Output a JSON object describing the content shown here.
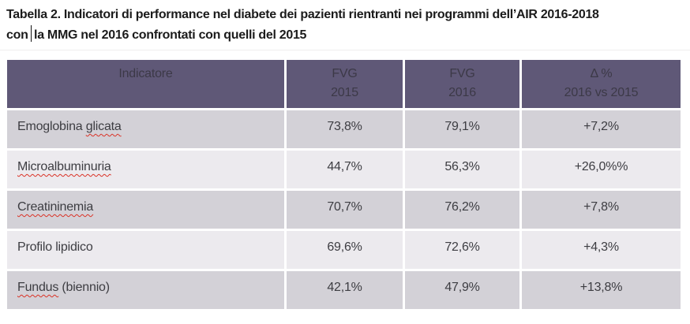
{
  "title": {
    "line1": "Tabella 2. Indicatori di performance nel diabete dei pazienti rientranti nei programmi dell’AIR 2016-2018",
    "line2_part1": "con",
    "line2_part2": "la MMG nel 2016 confrontati con quelli del 2015"
  },
  "colors": {
    "header_bg": "#5f5877",
    "header_text": "#3c3947",
    "row_shade_dark": "#d3d1d7",
    "row_shade_light": "#eceaee",
    "body_text": "#3d3d42",
    "title_text": "#1b1b1b",
    "spell_underline": "#da3125"
  },
  "table": {
    "columns": [
      {
        "line1": "Indicatore",
        "line2": ""
      },
      {
        "line1": "FVG",
        "line2": "2015"
      },
      {
        "line1": "FVG",
        "line2": "2016"
      },
      {
        "line1": "Δ %",
        "line2": "2016 vs 2015"
      }
    ],
    "rows": [
      {
        "parts": [
          {
            "t": "Emoglobina ",
            "spell": ""
          },
          {
            "t": "glicata",
            "spell": "error"
          }
        ],
        "fvg2015": "73,8%",
        "fvg2016": "79,1%",
        "delta": "+7,2%"
      },
      {
        "parts": [
          {
            "t": "Microalbuminuria",
            "spell": "error"
          }
        ],
        "fvg2015": "44,7%",
        "fvg2016": "56,3%",
        "delta": "+26,0%%"
      },
      {
        "parts": [
          {
            "t": "Creatininemia",
            "spell": "error"
          }
        ],
        "fvg2015": "70,7%",
        "fvg2016": "76,2%",
        "delta": "+7,8%"
      },
      {
        "parts": [
          {
            "t": "Profilo lipidico",
            "spell": ""
          }
        ],
        "fvg2015": "69,6%",
        "fvg2016": "72,6%",
        "delta": "+4,3%"
      },
      {
        "parts": [
          {
            "t": "Fundus",
            "spell": "error"
          },
          {
            "t": " (biennio)",
            "spell": ""
          }
        ],
        "fvg2015": "42,1%",
        "fvg2016": "47,9%",
        "delta": "+13,8%"
      }
    ]
  }
}
